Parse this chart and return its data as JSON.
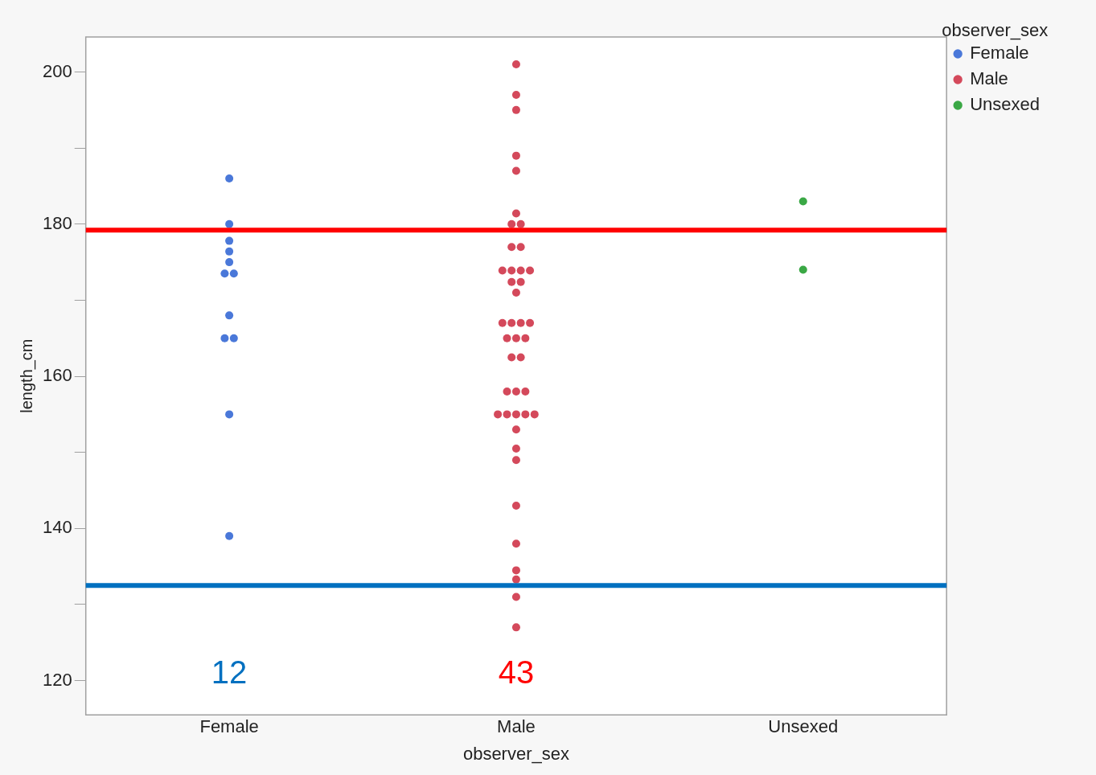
{
  "chart_data": {
    "type": "scatter",
    "xlabel": "observer_sex",
    "ylabel": "length_cm",
    "legend_title": "observer_sex",
    "legend": "top right",
    "marker": "circle",
    "grid": false,
    "categories": [
      "Female",
      "Male",
      "Unsexed"
    ],
    "ylim": [
      115.5,
      204.6
    ],
    "yticks": [
      120,
      {
        "value": 130,
        "label": null
      },
      140,
      {
        "value": 150,
        "label": null
      },
      160,
      {
        "value": 170,
        "label": null
      },
      180,
      {
        "value": 190,
        "label": null
      },
      200
    ],
    "series": [
      {
        "name": "Female",
        "color": "#4a78d9",
        "x": [
          "Female",
          "Female",
          "Female",
          "Female",
          "Female",
          "Female",
          "Female",
          "Female",
          "Female",
          "Female",
          "Female",
          "Female"
        ],
        "values": [
          186,
          180,
          177.8,
          176.4,
          175,
          173.5,
          173.5,
          168,
          165,
          165,
          155,
          139
        ]
      },
      {
        "name": "Male",
        "color": "#d4495b",
        "x": [
          "Male",
          "Male",
          "Male",
          "Male",
          "Male",
          "Male",
          "Male",
          "Male",
          "Male",
          "Male",
          "Male",
          "Male",
          "Male",
          "Male",
          "Male",
          "Male",
          "Male",
          "Male",
          "Male",
          "Male",
          "Male",
          "Male",
          "Male",
          "Male",
          "Male",
          "Male",
          "Male",
          "Male",
          "Male",
          "Male",
          "Male",
          "Male",
          "Male",
          "Male",
          "Male",
          "Male",
          "Male",
          "Male",
          "Male",
          "Male",
          "Male",
          "Male",
          "Male"
        ],
        "values": [
          201,
          197,
          195,
          189,
          187,
          181.4,
          180,
          180,
          177,
          177,
          173.9,
          173.9,
          173.9,
          173.9,
          172.4,
          172.4,
          171,
          167,
          167,
          167,
          167,
          165,
          165,
          165,
          162.5,
          162.5,
          158,
          158,
          158,
          155,
          155,
          155,
          155,
          155,
          153,
          150.5,
          149,
          143,
          138,
          134.5,
          133.3,
          131,
          127
        ]
      },
      {
        "name": "Unsexed",
        "color": "#3aa845",
        "x": [
          "Unsexed",
          "Unsexed"
        ],
        "values": [
          183,
          174
        ]
      }
    ],
    "ref_lines": [
      {
        "axis": "y",
        "value": 179.2,
        "color": "#ff0000"
      },
      {
        "axis": "y",
        "value": 132.5,
        "color": "#0070c0"
      }
    ],
    "annotations": [
      "12",
      "43"
    ]
  }
}
